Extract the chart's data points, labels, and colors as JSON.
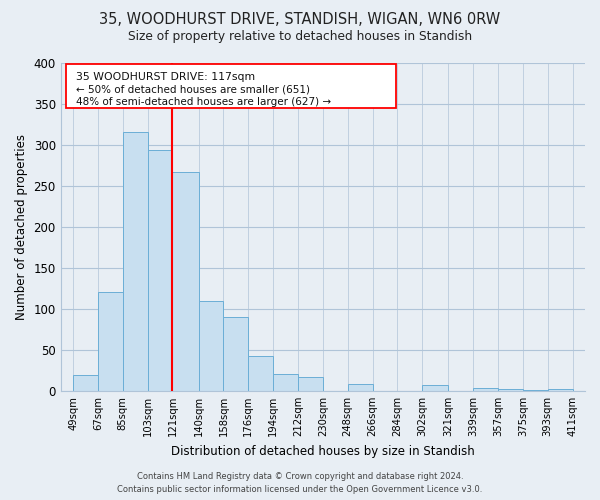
{
  "title": "35, WOODHURST DRIVE, STANDISH, WIGAN, WN6 0RW",
  "subtitle": "Size of property relative to detached houses in Standish",
  "xlabel": "Distribution of detached houses by size in Standish",
  "ylabel": "Number of detached properties",
  "bin_edges": [
    49,
    67,
    85,
    103,
    121,
    140,
    158,
    176,
    194,
    212,
    230,
    248,
    266,
    284,
    302,
    321,
    339,
    357,
    375,
    393,
    411
  ],
  "bar_heights": [
    20,
    120,
    315,
    294,
    267,
    110,
    90,
    43,
    21,
    17,
    0,
    9,
    0,
    0,
    7,
    0,
    4,
    2,
    1,
    2
  ],
  "bar_color": "#c8dff0",
  "bar_edge_color": "#6baed6",
  "vline_x": 121,
  "vline_color": "red",
  "xlim": [
    40,
    420
  ],
  "ylim": [
    0,
    400
  ],
  "yticks": [
    0,
    50,
    100,
    150,
    200,
    250,
    300,
    350,
    400
  ],
  "xtick_labels": [
    "49sqm",
    "67sqm",
    "85sqm",
    "103sqm",
    "121sqm",
    "140sqm",
    "158sqm",
    "176sqm",
    "194sqm",
    "212sqm",
    "230sqm",
    "248sqm",
    "266sqm",
    "284sqm",
    "302sqm",
    "321sqm",
    "339sqm",
    "357sqm",
    "375sqm",
    "393sqm",
    "411sqm"
  ],
  "xtick_positions": [
    49,
    67,
    85,
    103,
    121,
    140,
    158,
    176,
    194,
    212,
    230,
    248,
    266,
    284,
    302,
    321,
    339,
    357,
    375,
    393,
    411
  ],
  "annotation_lines": [
    "35 WOODHURST DRIVE: 117sqm",
    "← 50% of detached houses are smaller (651)",
    "48% of semi-detached houses are larger (627) →"
  ],
  "footer_line1": "Contains HM Land Registry data © Crown copyright and database right 2024.",
  "footer_line2": "Contains public sector information licensed under the Open Government Licence v3.0.",
  "bg_color": "#e8eef4",
  "plot_bg_color": "#e8eef4",
  "grid_color": "#b0c4d8"
}
